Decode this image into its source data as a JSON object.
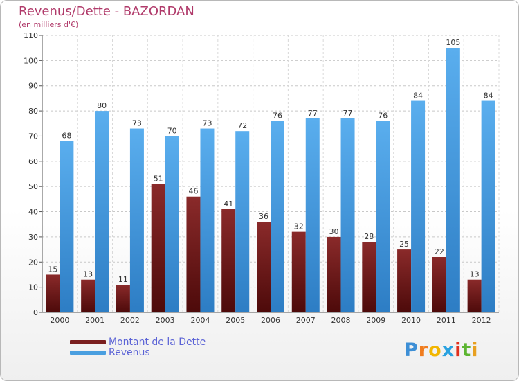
{
  "title": "Revenus/Dette - BAZORDAN",
  "subtitle": "(en milliers d'€)",
  "logo": {
    "letters": [
      "P",
      "r",
      "o",
      "x",
      "i",
      "t",
      "i"
    ],
    "colors": [
      "#3d8fd6",
      "#f07c1e",
      "#f2b600",
      "#2aa2e0",
      "#e0301e",
      "#5cb531",
      "#e8a020"
    ]
  },
  "colors": {
    "debt": "#7a1f1f",
    "revenue": "#4a9fe0"
  },
  "chart_data": {
    "type": "bar",
    "categories": [
      "2000",
      "2001",
      "2002",
      "2003",
      "2004",
      "2005",
      "2006",
      "2007",
      "2008",
      "2009",
      "2010",
      "2011",
      "2012"
    ],
    "series": [
      {
        "name": "Montant de la Dette",
        "values": [
          15,
          13,
          11,
          51,
          46,
          41,
          36,
          32,
          30,
          28,
          25,
          22,
          13
        ]
      },
      {
        "name": "Revenus",
        "values": [
          68,
          80,
          73,
          70,
          73,
          72,
          76,
          77,
          77,
          76,
          84,
          105,
          84
        ]
      }
    ],
    "title": "Revenus/Dette - BAZORDAN",
    "ylim": [
      0,
      110
    ],
    "yticks": [
      0,
      10,
      20,
      30,
      40,
      50,
      60,
      70,
      80,
      90,
      100,
      110
    ],
    "grid": true,
    "legend": "bottom-left"
  }
}
